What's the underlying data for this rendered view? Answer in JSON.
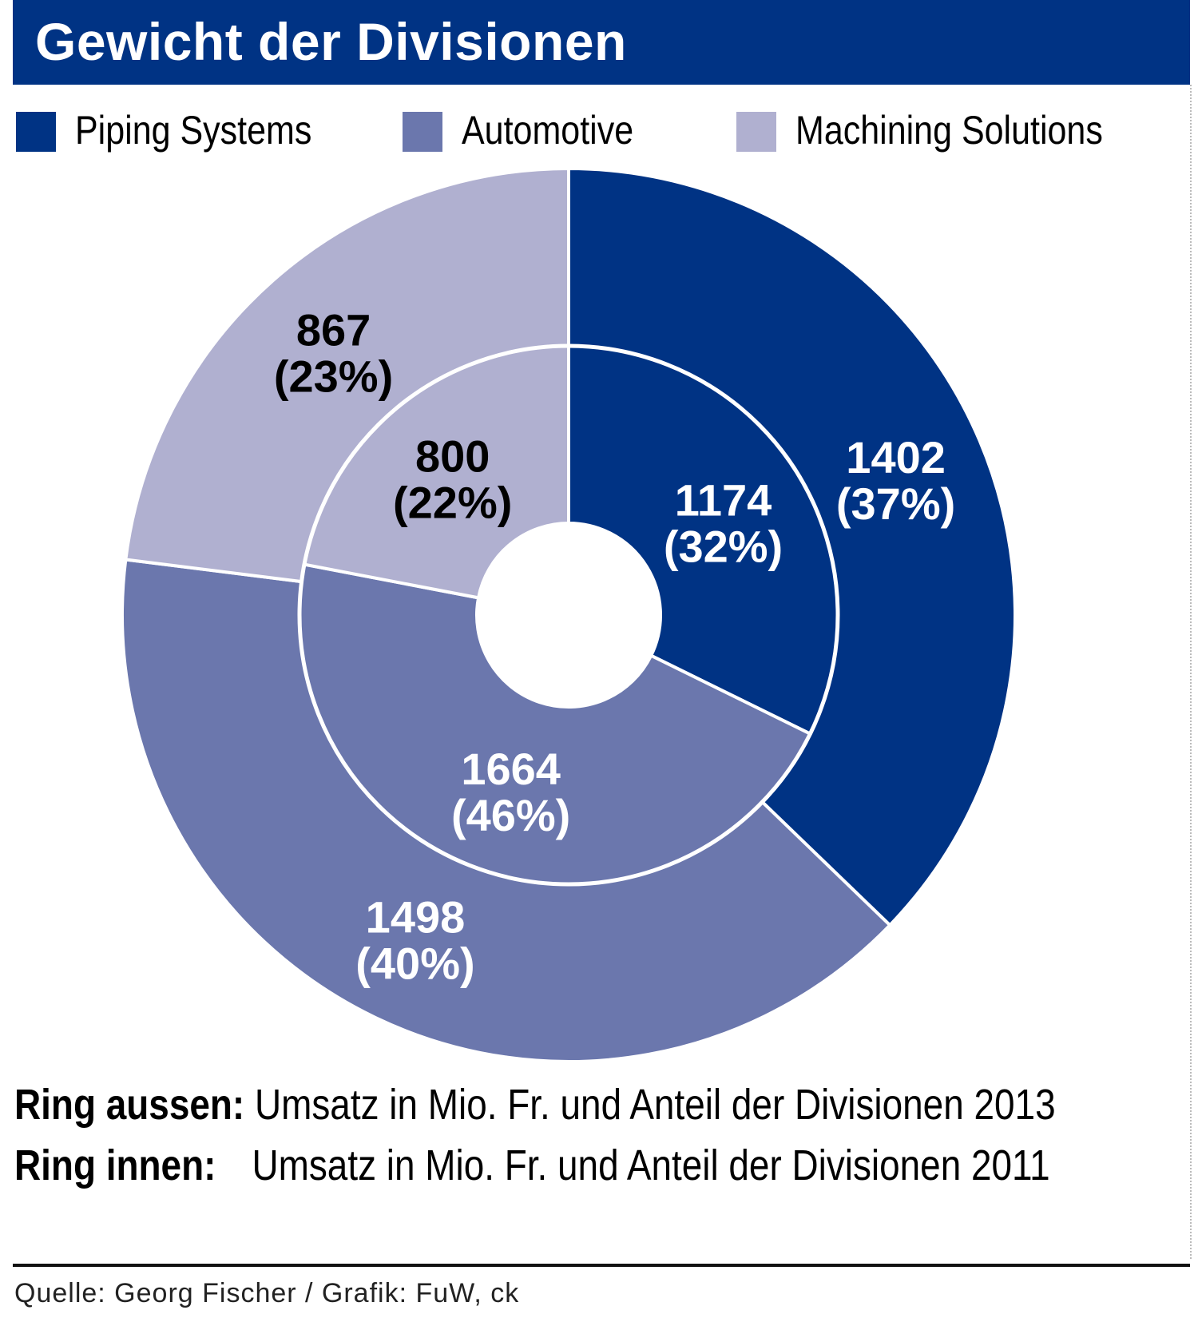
{
  "title": "Gewicht der Divisionen",
  "legend": [
    {
      "label": "Piping Systems",
      "color": "#003384"
    },
    {
      "label": "Automotive",
      "color": "#6b77ad"
    },
    {
      "label": "Machining Solutions",
      "color": "#b0b0d0"
    }
  ],
  "notes": [
    {
      "key": "Ring aussen:",
      "text": "Umsatz in Mio. Fr. und Anteil der Divisionen 2013"
    },
    {
      "key": "Ring innen:",
      "text": "Umsatz in Mio. Fr. und Anteil der Divisionen 2011"
    }
  ],
  "source": "Quelle: Georg Fischer / Grafik: FuW, ck",
  "chart_data": {
    "type": "pie",
    "subtype": "nested-donut",
    "categories": [
      "Piping Systems",
      "Automotive",
      "Machining Solutions"
    ],
    "colors": [
      "#003384",
      "#6b77ad",
      "#b0b0d0"
    ],
    "series": [
      {
        "ring": "outer",
        "values": [
          1402,
          1498,
          867
        ],
        "percents": [
          "37%",
          "40%",
          "23%"
        ],
        "labels": [
          "1402",
          "1498",
          "867"
        ],
        "pct_labels": [
          "(37%)",
          "(40%)",
          "(23%)"
        ]
      },
      {
        "ring": "inner",
        "values": [
          1174,
          1664,
          800
        ],
        "percents": [
          "32%",
          "46%",
          "22%"
        ],
        "labels": [
          "1174",
          "1664",
          "800"
        ],
        "pct_labels": [
          "(32%)",
          "(46%)",
          "(22%)"
        ]
      }
    ],
    "label_colors": [
      "#ffffff",
      "#ffffff",
      "#000000"
    ]
  }
}
